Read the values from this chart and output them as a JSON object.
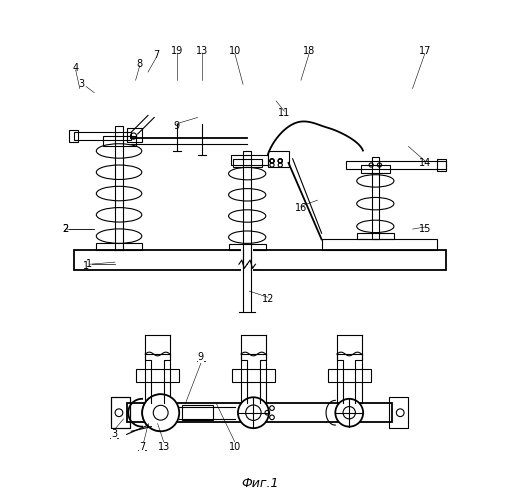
{
  "bg_color": "#ffffff",
  "line_color": "#000000",
  "fig_width": 5.09,
  "fig_height": 5.0,
  "dpi": 100,
  "caption": "Фиг.1"
}
